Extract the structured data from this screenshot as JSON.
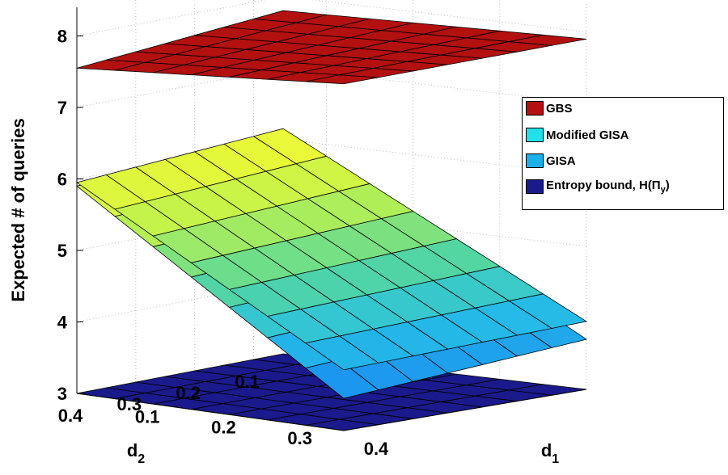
{
  "chart_data": {
    "type": "surface3d",
    "zlabel": "Expected # of queries",
    "xlabel_base": "d",
    "xlabel_sub": "1",
    "ylabel_base": "d",
    "ylabel_sub": "2",
    "d1": [
      0.05,
      0.1,
      0.15,
      0.2,
      0.25,
      0.3,
      0.35,
      0.4
    ],
    "d2": [
      0.05,
      0.1,
      0.15,
      0.2,
      0.25,
      0.3,
      0.35,
      0.4
    ],
    "d1_ticks": [
      "0.1",
      "0.2",
      "0.3",
      "0.4"
    ],
    "d2_ticks": [
      "0.1",
      "0.2",
      "0.3",
      "0.4"
    ],
    "z_ticks": [
      "3",
      "4",
      "5",
      "6",
      "7",
      "8"
    ],
    "zlim": [
      3,
      8.3
    ],
    "grid": true,
    "legend_position": "right",
    "series": [
      {
        "name": "GBS",
        "color": "#b31010",
        "corners": {
          "d1min_d2min": 7.8,
          "d1max_d2min": 7.9,
          "d1min_d2max": 7.55,
          "d1max_d2max": 7.85
        }
      },
      {
        "name": "Modified GISA",
        "color": "#22e0ea",
        "corners": {
          "d1min_d2min": 6.15,
          "d1max_d2min": 3.95,
          "d1min_d2max": 5.95,
          "d1max_d2max": 3.85
        }
      },
      {
        "name": "GISA",
        "color": "#1ab0ea",
        "corners": {
          "d1min_d2min": 6.05,
          "d1max_d2min": 3.7,
          "d1min_d2max": 5.9,
          "d1max_d2max": 3.45
        }
      },
      {
        "name": "Entropy bound, H(Π",
        "name_sub": "y",
        "name_suffix": ")",
        "color": "#1a1a8c",
        "corners": {
          "d1min_d2min": 3.0,
          "d1max_d2min": 3.0,
          "d1min_d2max": 3.0,
          "d1max_d2max": 3.0
        }
      }
    ]
  }
}
